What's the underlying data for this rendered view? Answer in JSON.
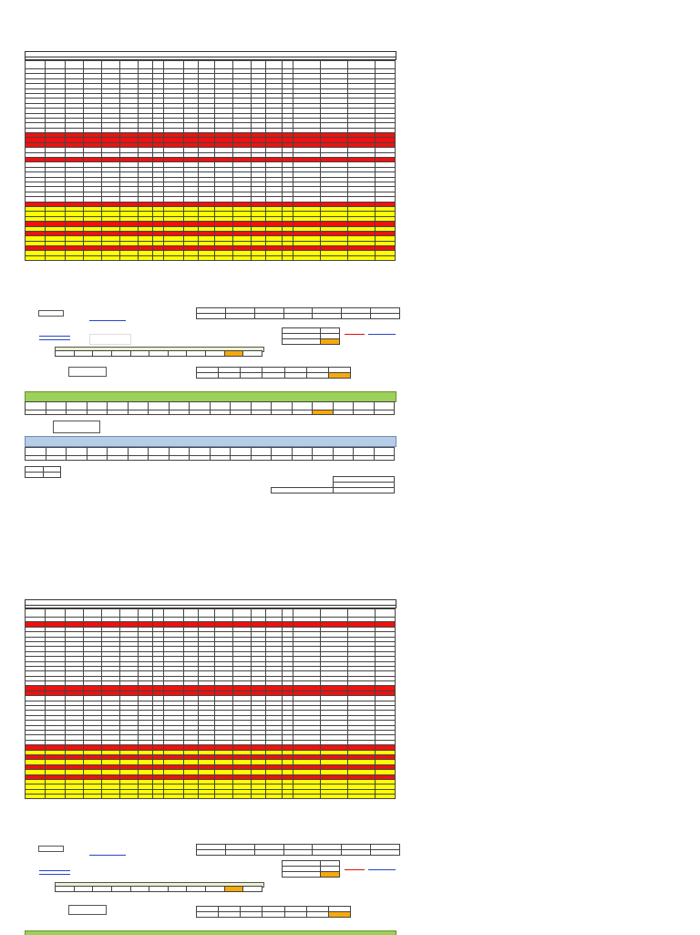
{
  "sheets": [
    {
      "id": "sheet-1",
      "columns": 21,
      "row_colors": [
        "white",
        "white",
        "white",
        "white",
        "white",
        "white",
        "white",
        "white",
        "white",
        "white",
        "white",
        "white",
        "white",
        "red",
        "red",
        "red",
        "white",
        "white",
        "red",
        "white",
        "white",
        "white",
        "white",
        "white",
        "white",
        "white",
        "white",
        "red",
        "yellow",
        "yellow",
        "yellow",
        "red",
        "yellow",
        "red",
        "yellow",
        "yellow",
        "red",
        "yellow",
        "yellow"
      ]
    },
    {
      "id": "sheet-2",
      "columns": 21,
      "row_colors": [
        "white",
        "red",
        "white",
        "white",
        "white",
        "white",
        "white",
        "white",
        "white",
        "white",
        "white",
        "white",
        "white",
        "white",
        "red",
        "red",
        "white",
        "white",
        "white",
        "white",
        "white",
        "white",
        "white",
        "white",
        "white",
        "white",
        "red",
        "yellow",
        "red",
        "yellow",
        "red",
        "yellow",
        "red",
        "yellow",
        "yellow",
        "yellow",
        "yellow"
      ]
    }
  ],
  "palette": {
    "red": "#ee1111",
    "yellow": "#ffff00",
    "green_band": "#9bd05a",
    "blue_band": "#b7cde6",
    "orange_cell": "#f6a90b",
    "link": "#2a45c9"
  }
}
